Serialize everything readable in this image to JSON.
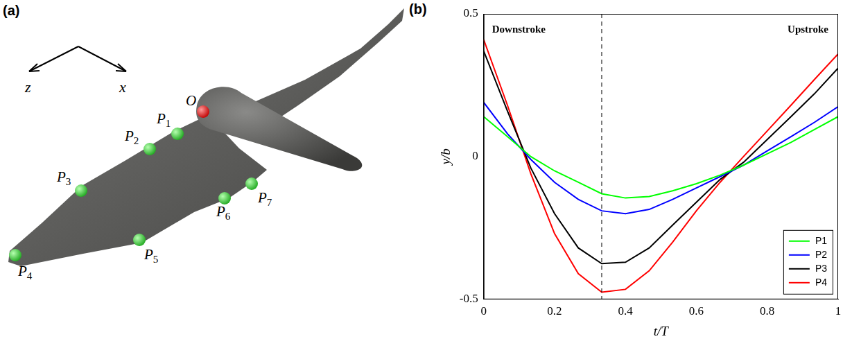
{
  "panel_a": {
    "label": "(a)",
    "axes": [
      "z",
      "x"
    ],
    "origin": "O",
    "points": [
      "P1",
      "P2",
      "P3",
      "P4",
      "P5",
      "P6",
      "P7"
    ]
  },
  "chart_data": {
    "type": "line",
    "panel_label": "(b)",
    "x_label": "t/T",
    "y_label": "y/b",
    "annotations": [
      "Downstroke",
      "Upstroke"
    ],
    "divider": {
      "x": 0.333,
      "line_style": "dashed"
    },
    "x": [
      0,
      0.067,
      0.133,
      0.2,
      0.267,
      0.333,
      0.4,
      0.467,
      0.533,
      0.6,
      0.667,
      0.733,
      0.8,
      0.867,
      0.933,
      1
    ],
    "series": [
      {
        "name": "P1",
        "color": "#00ff00",
        "values": [
          0.14,
          0.07,
          0.0,
          -0.05,
          -0.09,
          -0.13,
          -0.145,
          -0.14,
          -0.12,
          -0.095,
          -0.065,
          -0.03,
          0.01,
          0.05,
          0.095,
          0.14
        ]
      },
      {
        "name": "P2",
        "color": "#0000ff",
        "values": [
          0.19,
          0.08,
          -0.01,
          -0.09,
          -0.15,
          -0.19,
          -0.2,
          -0.185,
          -0.15,
          -0.11,
          -0.07,
          -0.03,
          0.02,
          0.07,
          0.12,
          0.175
        ]
      },
      {
        "name": "P3",
        "color": "#000000",
        "values": [
          0.37,
          0.16,
          -0.04,
          -0.2,
          -0.32,
          -0.375,
          -0.37,
          -0.32,
          -0.24,
          -0.16,
          -0.08,
          -0.02,
          0.06,
          0.14,
          0.22,
          0.31
        ]
      },
      {
        "name": "P4",
        "color": "#ff0000",
        "values": [
          0.41,
          0.18,
          -0.06,
          -0.27,
          -0.41,
          -0.475,
          -0.465,
          -0.4,
          -0.3,
          -0.19,
          -0.09,
          0.0,
          0.09,
          0.18,
          0.27,
          0.36
        ]
      }
    ],
    "xlim": [
      0,
      1
    ],
    "xticks": [
      0,
      0.2,
      0.4,
      0.6,
      0.8,
      1
    ],
    "ylim": [
      -0.5,
      0.5
    ],
    "yticks": [
      -0.5,
      0,
      0.5
    ],
    "grid": false,
    "legend": "lower right"
  }
}
